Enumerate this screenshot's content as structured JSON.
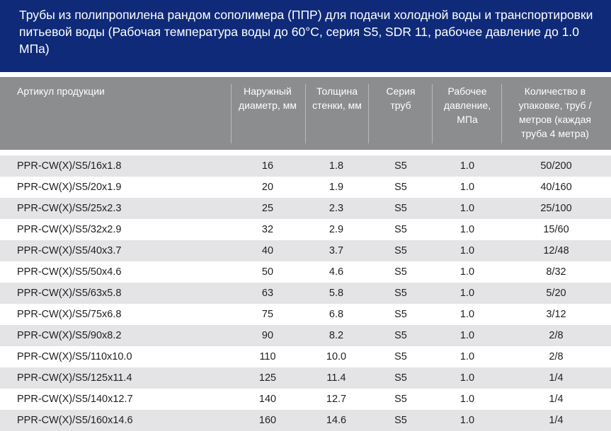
{
  "title": "Трубы из полипропилена рандом сополимера (ППР) для подачи холодной воды и транспортировки питьевой воды (Рабочая температура воды до 60°С, серия S5, SDR 11, рабочее давление до 1.0 МПа)",
  "columns": [
    {
      "label": "Артикул продукции"
    },
    {
      "label": "Наружный диаметр, мм"
    },
    {
      "label": "Толщина стенки, мм"
    },
    {
      "label": "Серия труб"
    },
    {
      "label": "Рабочее давление, МПа"
    },
    {
      "label": "Количество в упаковке, труб / метров (каждая труба 4 метра)"
    }
  ],
  "rows": [
    [
      "PPR-CW(X)/S5/16x1.8",
      "16",
      "1.8",
      "S5",
      "1.0",
      "50/200"
    ],
    [
      "PPR-CW(X)/S5/20x1.9",
      "20",
      "1.9",
      "S5",
      "1.0",
      "40/160"
    ],
    [
      "PPR-CW(X)/S5/25x2.3",
      "25",
      "2.3",
      "S5",
      "1.0",
      "25/100"
    ],
    [
      "PPR-CW(X)/S5/32x2.9",
      "32",
      "2.9",
      "S5",
      "1.0",
      "15/60"
    ],
    [
      "PPR-CW(X)/S5/40x3.7",
      "40",
      "3.7",
      "S5",
      "1.0",
      "12/48"
    ],
    [
      "PPR-CW(X)/S5/50x4.6",
      "50",
      "4.6",
      "S5",
      "1.0",
      "8/32"
    ],
    [
      "PPR-CW(X)/S5/63x5.8",
      "63",
      "5.8",
      "S5",
      "1.0",
      "5/20"
    ],
    [
      "PPR-CW(X)/S5/75x6.8",
      "75",
      "6.8",
      "S5",
      "1.0",
      "3/12"
    ],
    [
      "PPR-CW(X)/S5/90x8.2",
      "90",
      "8.2",
      "S5",
      "1.0",
      "2/8"
    ],
    [
      "PPR-CW(X)/S5/110x10.0",
      "110",
      "10.0",
      "S5",
      "1.0",
      "2/8"
    ],
    [
      "PPR-CW(X)/S5/125x11.4",
      "125",
      "11.4",
      "S5",
      "1.0",
      "1/4"
    ],
    [
      "PPR-CW(X)/S5/140x12.7",
      "140",
      "12.7",
      "S5",
      "1.0",
      "1/4"
    ],
    [
      "PPR-CW(X)/S5/160x14.6",
      "160",
      "14.6",
      "S5",
      "1.0",
      "1/4"
    ]
  ],
  "colors": {
    "header_band": "#0f2a78",
    "column_header": "#8c8d8f",
    "row_shade": "#e4e4e6"
  }
}
